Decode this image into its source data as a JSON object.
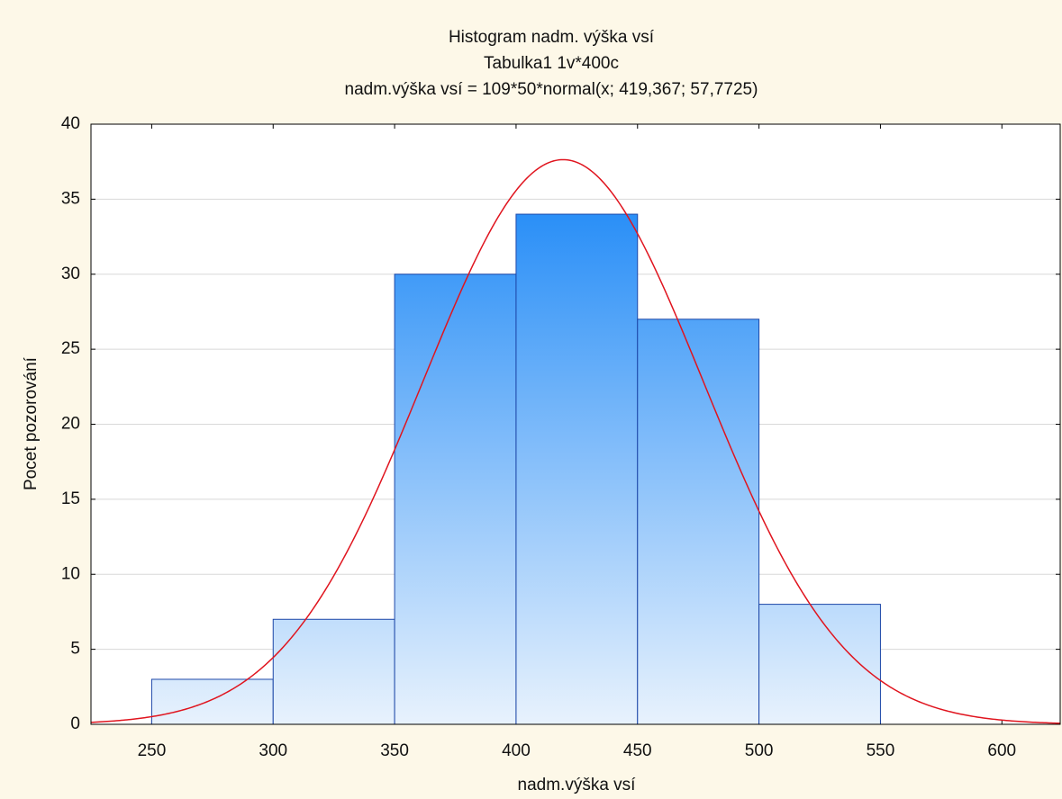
{
  "chart_data": {
    "type": "histogram",
    "title": "Histogram nadm. výška vsí",
    "subtitle": [
      "Tabulka1 1v*400c",
      "nadm.výška vsí = 109*50*normal(x; 419,367; 57,7725)"
    ],
    "x_label": "nadm.výška vsí",
    "y_label": "Pocet pozorování",
    "bins": [
      250,
      300,
      350,
      400,
      450,
      500,
      550
    ],
    "values": [
      3,
      7,
      30,
      34,
      27,
      8
    ],
    "color": "#2a8ff7",
    "fit": {
      "n": 109,
      "bin_width": 50,
      "mean": 419.367,
      "sd": 57.7725,
      "color": "#e0141e"
    },
    "xlim": [
      225,
      624
    ],
    "xticks": [
      250,
      300,
      350,
      400,
      450,
      500,
      550,
      600
    ],
    "ylim": [
      0,
      40
    ],
    "yticks": [
      0,
      5,
      10,
      15,
      20,
      25,
      30,
      35,
      40
    ],
    "grid": true
  }
}
